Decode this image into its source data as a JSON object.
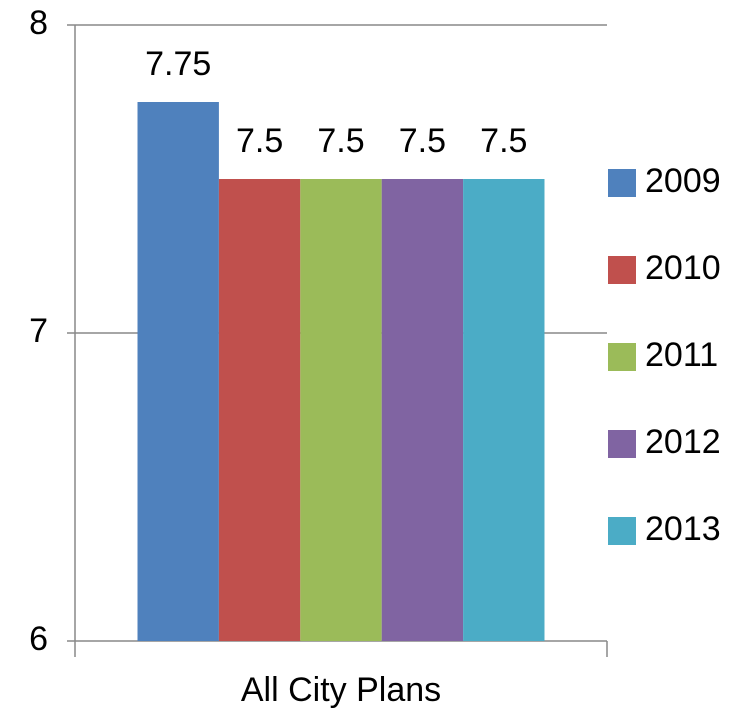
{
  "chart_data": {
    "type": "bar",
    "categories": [
      "All City Plans"
    ],
    "series": [
      {
        "name": "2009",
        "color": "#4f81bd",
        "values": [
          7.75
        ]
      },
      {
        "name": "2010",
        "color": "#c0504d",
        "values": [
          7.5
        ]
      },
      {
        "name": "2011",
        "color": "#9bbb59",
        "values": [
          7.5
        ]
      },
      {
        "name": "2012",
        "color": "#8064a2",
        "values": [
          7.5
        ]
      },
      {
        "name": "2013",
        "color": "#4bacc6",
        "values": [
          7.5
        ]
      }
    ],
    "ylim": [
      6,
      8
    ],
    "yticks": [
      6,
      7,
      8
    ],
    "grid": true,
    "legend": "right",
    "data_labels": true
  }
}
